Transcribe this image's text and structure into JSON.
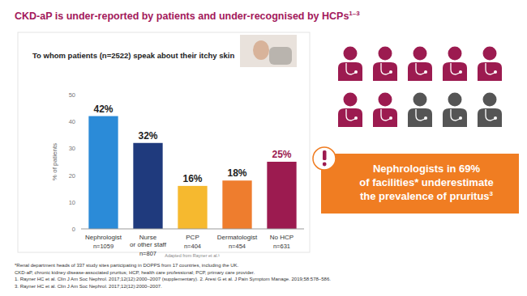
{
  "title": {
    "text": "CKD-aP is under-reported by patients and under-recognised by HCPs",
    "superscript": "1–3"
  },
  "chart_data": {
    "type": "bar",
    "title": "To whom patients (n=2522) speak about their itchy skin",
    "categories": [
      "Nephrologist",
      "Nurse or other staff",
      "PCP",
      "Dermatologist",
      "No HCP"
    ],
    "values": [
      42,
      32,
      16,
      18,
      25
    ],
    "value_labels": [
      "42%",
      "32%",
      "16%",
      "18%",
      "25%"
    ],
    "colors": [
      "#2b8bd8",
      "#1f3a7d",
      "#f6b92f",
      "#ee7d2e",
      "#9c1b50"
    ],
    "ylim": [
      0,
      50
    ],
    "yticks": [
      0,
      10,
      20,
      30,
      40,
      50
    ],
    "y_label": "% of patients",
    "grid": false,
    "data_labels": true,
    "n_labels": [
      "n=1059",
      "n=807",
      "n=404",
      "n=454",
      "n=631"
    ],
    "source": "Adapted from Rayner et al.¹"
  },
  "callout": {
    "lines": [
      "Nephrologists in 69%",
      "of facilities* underestimate",
      "the prevalence of pruritus"
    ],
    "superscript": "3",
    "facilities_percent": 69
  },
  "footnotes": [
    "*Renal department heads of 337 study sites participating in DOPPS from 17 countries, including the UK.",
    "CKD-aP, chronic kidney disease-associated pruritus; HCP, health care professional; PCP, primary care provider.",
    "1. Rayner HC et al. Clin J Am Soc Nephrol. 2017;12(12):2000–2007 (supplementary). 2. Aresi G et al. J Pain Symptom Manage. 2019;58:578–586.",
    "3. Rayner HC et al. Clin J Am Soc Nephrol. 2017;12(12):2000–2007."
  ]
}
